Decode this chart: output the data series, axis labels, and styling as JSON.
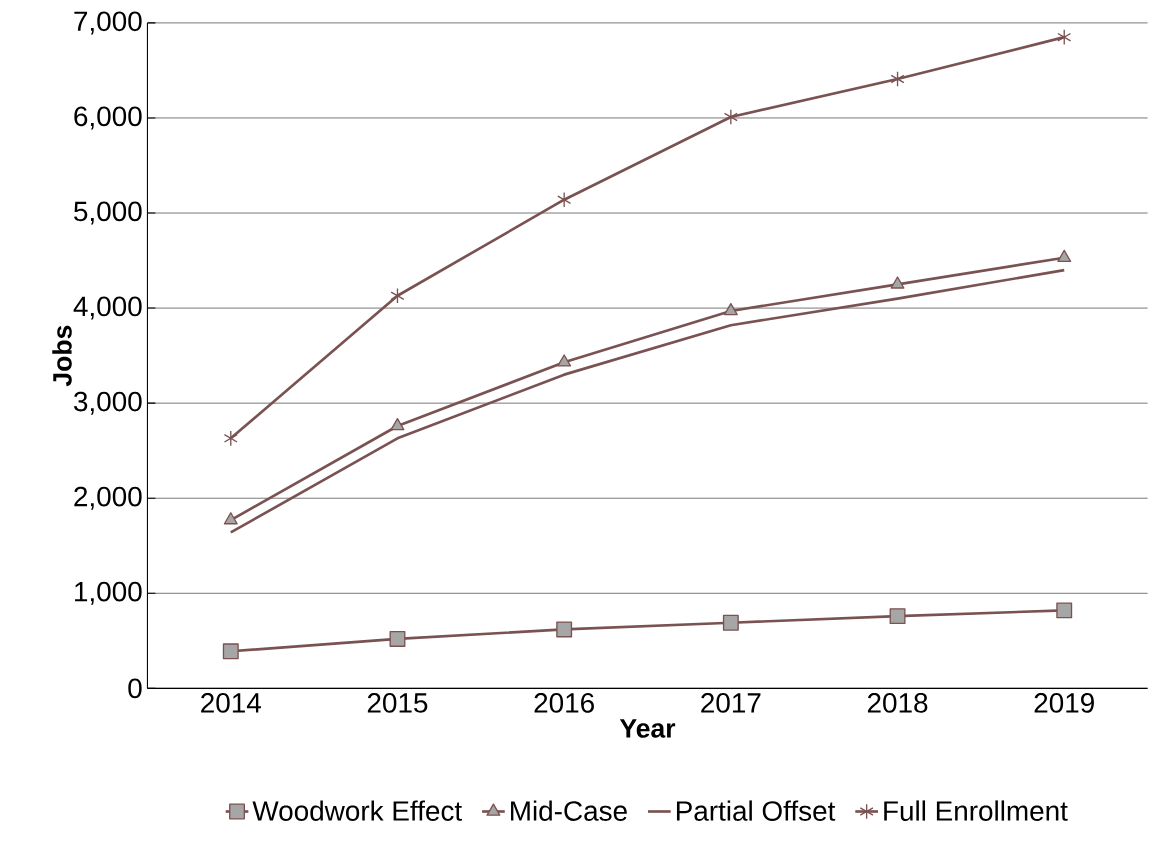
{
  "chart_data": {
    "type": "line",
    "xlabel": "Year",
    "ylabel": "Jobs",
    "categories": [
      "2014",
      "2015",
      "2016",
      "2017",
      "2018",
      "2019"
    ],
    "series": [
      {
        "name": "Woodwork Effect",
        "color": "#7a5252",
        "marker": "square",
        "values": [
          390,
          520,
          620,
          690,
          760,
          820
        ]
      },
      {
        "name": "Mid-Case",
        "color": "#7a5252",
        "marker": "triangle",
        "values": [
          1770,
          2760,
          3430,
          3970,
          4250,
          4530
        ]
      },
      {
        "name": "Partial Offset",
        "color": "#7a5252",
        "marker": "none",
        "values": [
          1640,
          2630,
          3300,
          3820,
          4100,
          4400
        ]
      },
      {
        "name": "Full Enrollment",
        "color": "#7a5252",
        "marker": "cross",
        "values": [
          2630,
          4130,
          5140,
          6010,
          6410,
          6850
        ]
      }
    ],
    "ylim": [
      0,
      7000
    ],
    "yticks": [
      {
        "value": 0,
        "label": "0"
      },
      {
        "value": 1000,
        "label": "1,000"
      },
      {
        "value": 2000,
        "label": "2,000"
      },
      {
        "value": 3000,
        "label": "3,000"
      },
      {
        "value": 4000,
        "label": "4,000"
      },
      {
        "value": 5000,
        "label": "5,000"
      },
      {
        "value": 6000,
        "label": "6,000"
      },
      {
        "value": 7000,
        "label": "7,000"
      }
    ],
    "grid": "y",
    "legend": "bottom"
  }
}
